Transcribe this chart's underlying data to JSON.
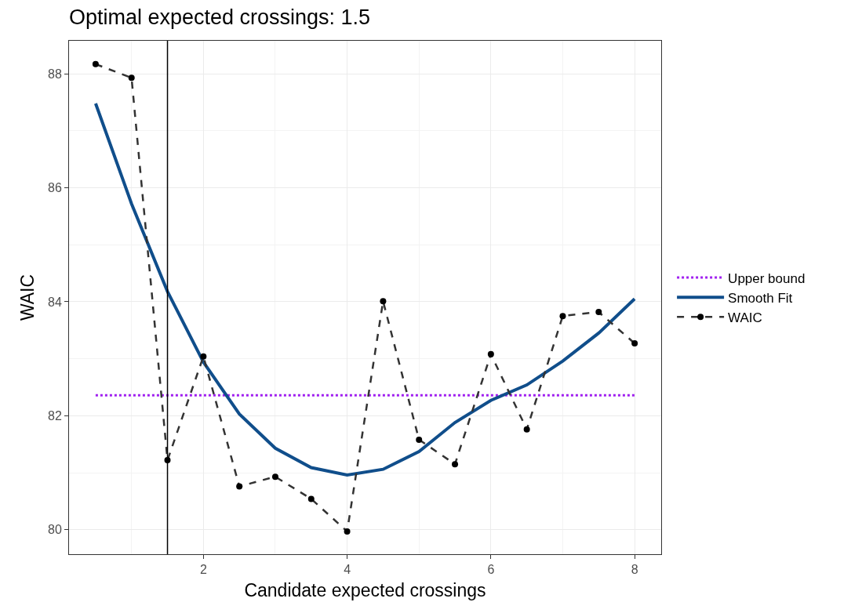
{
  "chart_data": {
    "type": "line",
    "title": "Optimal expected crossings: 1.5",
    "xlabel": "Candidate expected crossings",
    "ylabel": "WAIC",
    "xlim": [
      0.13,
      8.37
    ],
    "ylim": [
      79.57,
      88.58
    ],
    "xticks": [
      2,
      4,
      6,
      8
    ],
    "yticks": [
      80,
      82,
      84,
      86,
      88
    ],
    "grid": true,
    "legend": "right",
    "series": [
      {
        "name": "Upper bound",
        "color": "#a020f0",
        "line_style": "dotted",
        "marker": "none",
        "x": [
          0.5,
          8
        ],
        "values": [
          82.36,
          82.36
        ]
      },
      {
        "name": "Smooth Fit",
        "color": "#104e8b",
        "line_style": "solid",
        "marker": "none",
        "x": [
          0.5,
          1,
          1.5,
          2,
          2.5,
          3,
          3.5,
          4,
          4.5,
          5,
          5.5,
          6,
          6.5,
          7,
          7.5,
          8
        ],
        "values": [
          87.48,
          85.72,
          84.18,
          82.94,
          82.03,
          81.43,
          81.09,
          80.96,
          81.06,
          81.37,
          81.88,
          82.27,
          82.54,
          82.96,
          83.45,
          84.05
        ]
      },
      {
        "name": "WAIC",
        "color": "#333333",
        "line_style": "dashed",
        "marker": "circle",
        "x": [
          0.5,
          1,
          1.5,
          2,
          2.5,
          3,
          3.5,
          4,
          4.5,
          5,
          5.5,
          6,
          6.5,
          7,
          7.5,
          8
        ],
        "values": [
          88.17,
          87.93,
          81.22,
          83.04,
          80.76,
          80.93,
          80.54,
          79.97,
          84.01,
          81.58,
          81.15,
          83.08,
          81.76,
          83.75,
          83.82,
          83.27
        ]
      }
    ],
    "ref_lines": [
      {
        "axis": "x",
        "value": 1.5,
        "color": "#000000",
        "line_style": "solid"
      }
    ]
  }
}
